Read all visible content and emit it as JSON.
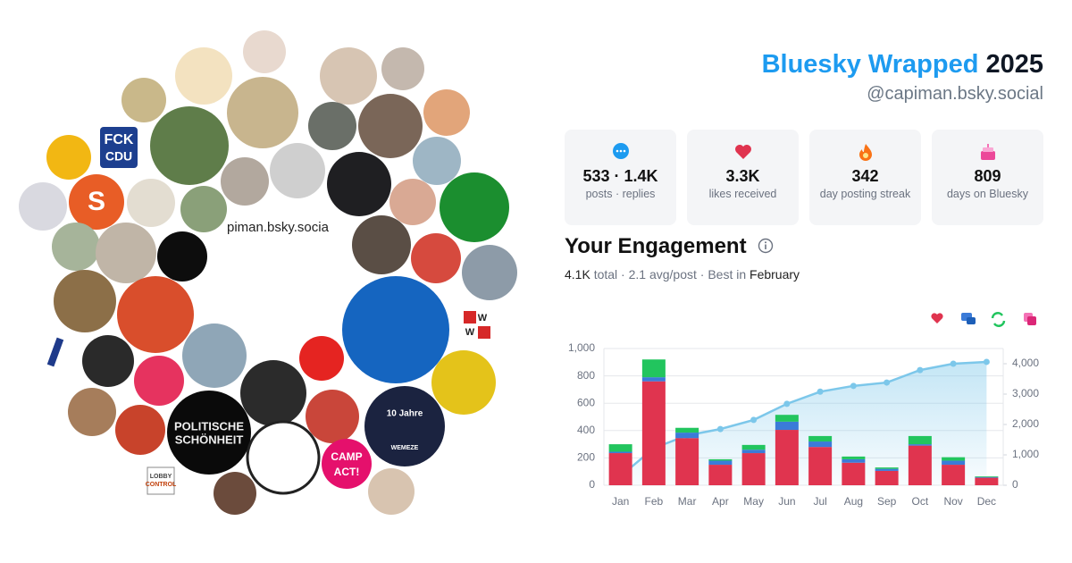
{
  "header": {
    "title": "Bluesky Wrapped",
    "year": "2025",
    "handle": "@capiman.bsky.social"
  },
  "stats": [
    {
      "value": "533 · 1.4K",
      "label": "posts · replies"
    },
    {
      "value": "3.3K",
      "label": "likes received"
    },
    {
      "value": "342",
      "label": "day posting streak"
    },
    {
      "value": "809",
      "label": "days on Bluesky"
    }
  ],
  "collage": {
    "handle": "piman.bsky.socia",
    "fck": "FCK",
    "cdu": "CDU",
    "s": "S",
    "politische": "POLITISCHE",
    "schoenheit": "SCHÖNHEIT",
    "camp": "CAMP",
    "act": "ACT!",
    "jahre": "10 Jahre",
    "wemeze": "WEMEZE",
    "lobby": "LOBBY",
    "control": "CONTROL",
    "w1": "W",
    "w2": "W"
  },
  "chart_data": {
    "type": "bar",
    "title": "Your Engagement",
    "subtitle": [
      "4.1K",
      "total · 2.1 avg/post · Best in",
      "February"
    ],
    "categories": [
      "Jan",
      "Feb",
      "Mar",
      "Apr",
      "May",
      "Jun",
      "Jul",
      "Aug",
      "Sep",
      "Oct",
      "Nov",
      "Dec"
    ],
    "series": [
      {
        "color": "#e0344f",
        "values": [
          235,
          760,
          345,
          150,
          235,
          405,
          280,
          165,
          105,
          290,
          150,
          55
        ]
      },
      {
        "color": "#3b7bd8",
        "values": [
          10,
          30,
          40,
          30,
          25,
          60,
          40,
          25,
          15,
          10,
          30,
          5
        ]
      },
      {
        "color": "#22c55e",
        "values": [
          55,
          130,
          35,
          10,
          35,
          50,
          40,
          20,
          10,
          60,
          25,
          5
        ]
      },
      {
        "color": "#ec4899",
        "values": [
          0,
          0,
          0,
          0,
          0,
          0,
          0,
          0,
          0,
          0,
          0,
          0
        ]
      },
      {
        "color": "#7cc7ea",
        "type": "line",
        "axis": "y2",
        "values": [
          300,
          1220,
          1640,
          1850,
          2150,
          2680,
          3080,
          3270,
          3380,
          3790,
          4000,
          4060
        ]
      }
    ],
    "ylim": [
      0,
      1000
    ],
    "yticks": [
      0,
      200,
      400,
      600,
      800,
      {
        "value": 1000,
        "label": "1,000"
      }
    ],
    "y2lim": [
      0,
      4500
    ],
    "y2ticks": [
      0,
      {
        "value": 1000,
        "label": "1,000"
      },
      {
        "value": 2000,
        "label": "2,000"
      },
      {
        "value": 3000,
        "label": "3,000"
      },
      {
        "value": 4000,
        "label": "4,000"
      }
    ],
    "grid": true
  }
}
